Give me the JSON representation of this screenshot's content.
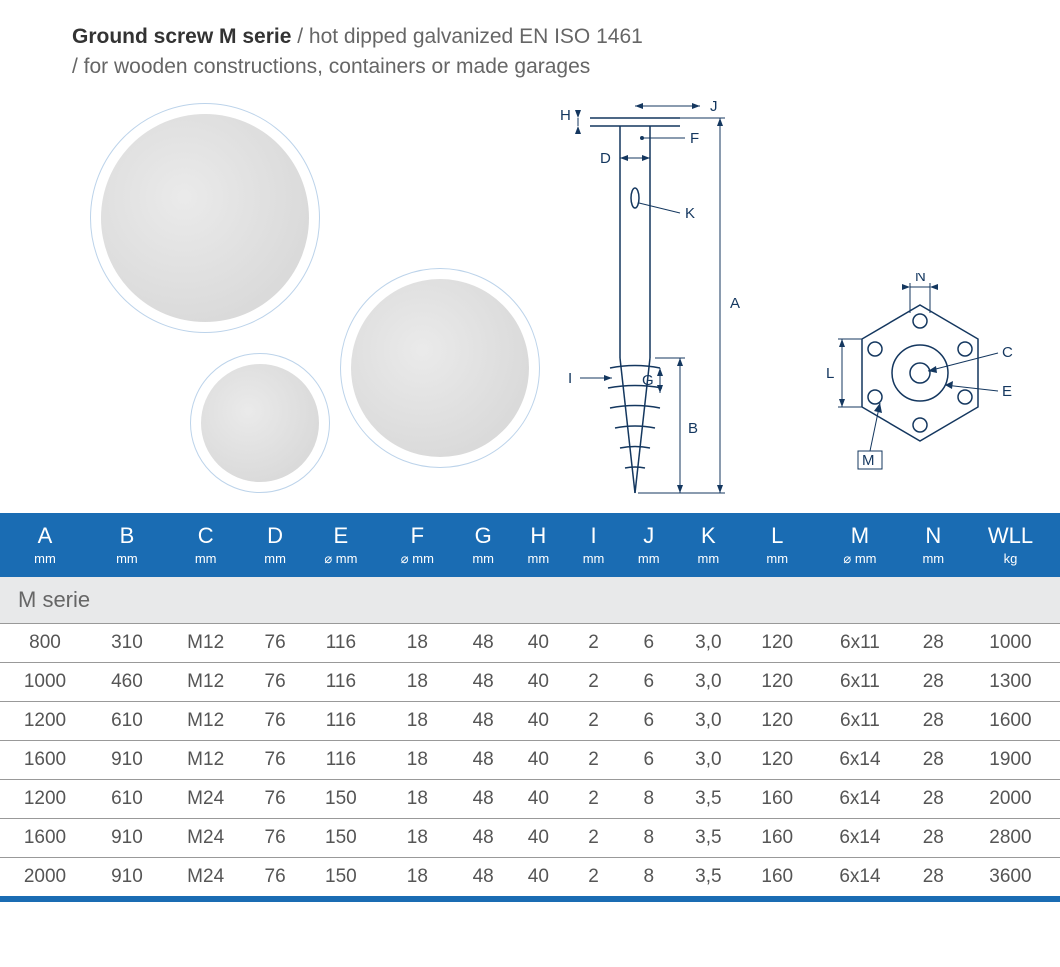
{
  "header": {
    "title_bold": "Ground screw M serie",
    "title_rest": " / hot dipped galvanized EN ISO 1461",
    "subtitle": "/ for wooden constructions, containers or made garages"
  },
  "diagram": {
    "labels": {
      "A": "A",
      "B": "B",
      "D": "D",
      "F": "F",
      "G": "G",
      "H": "H",
      "I": "I",
      "J": "J",
      "K": "K"
    },
    "color": "#14375f"
  },
  "topview": {
    "labels": {
      "C": "C",
      "E": "E",
      "L": "L",
      "M": "M",
      "N": "N"
    },
    "color": "#14375f"
  },
  "table": {
    "header_bg": "#1a6cb3",
    "header_fg": "#ffffff",
    "section_bg": "#e8e9ea",
    "rule_color": "#999999",
    "diameter_symbol": "⌀",
    "columns": [
      {
        "name": "A",
        "unit": "mm"
      },
      {
        "name": "B",
        "unit": "mm"
      },
      {
        "name": "C",
        "unit": "mm"
      },
      {
        "name": "D",
        "unit": "mm"
      },
      {
        "name": "E",
        "unit": "⌀ mm"
      },
      {
        "name": "F",
        "unit": "⌀ mm"
      },
      {
        "name": "G",
        "unit": "mm"
      },
      {
        "name": "H",
        "unit": "mm"
      },
      {
        "name": "I",
        "unit": "mm"
      },
      {
        "name": "J",
        "unit": "mm"
      },
      {
        "name": "K",
        "unit": "mm"
      },
      {
        "name": "L",
        "unit": "mm"
      },
      {
        "name": "M",
        "unit": "⌀ mm"
      },
      {
        "name": "N",
        "unit": "mm"
      },
      {
        "name": "WLL",
        "unit": "kg"
      }
    ],
    "section_label": "M serie",
    "rows": [
      [
        "800",
        "310",
        "M12",
        "76",
        "116",
        "18",
        "48",
        "40",
        "2",
        "6",
        "3,0",
        "120",
        "6x11",
        "28",
        "1000"
      ],
      [
        "1000",
        "460",
        "M12",
        "76",
        "116",
        "18",
        "48",
        "40",
        "2",
        "6",
        "3,0",
        "120",
        "6x11",
        "28",
        "1300"
      ],
      [
        "1200",
        "610",
        "M12",
        "76",
        "116",
        "18",
        "48",
        "40",
        "2",
        "6",
        "3,0",
        "120",
        "6x11",
        "28",
        "1600"
      ],
      [
        "1600",
        "910",
        "M12",
        "76",
        "116",
        "18",
        "48",
        "40",
        "2",
        "6",
        "3,0",
        "120",
        "6x14",
        "28",
        "1900"
      ],
      [
        "1200",
        "610",
        "M24",
        "76",
        "150",
        "18",
        "48",
        "40",
        "2",
        "8",
        "3,5",
        "160",
        "6x14",
        "28",
        "2000"
      ],
      [
        "1600",
        "910",
        "M24",
        "76",
        "150",
        "18",
        "48",
        "40",
        "2",
        "8",
        "3,5",
        "160",
        "6x14",
        "28",
        "2800"
      ],
      [
        "2000",
        "910",
        "M24",
        "76",
        "150",
        "18",
        "48",
        "40",
        "2",
        "8",
        "3,5",
        "160",
        "6x14",
        "28",
        "3600"
      ]
    ]
  }
}
